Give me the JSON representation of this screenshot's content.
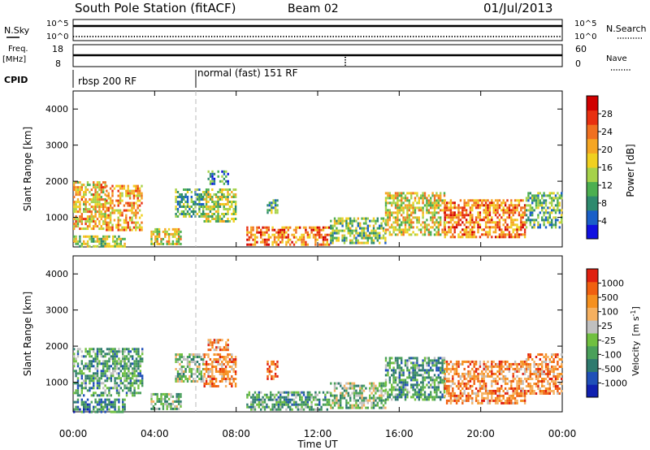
{
  "header": {
    "station": "South Pole Station (fitACF)",
    "beam": "Beam 02",
    "date": "01/Jul/2013"
  },
  "strip": {
    "nsky_label": "N.Sky",
    "nsky_ticks": [
      "10^5",
      "10^0"
    ],
    "nsearch_label": "N.Search",
    "nsearch_ticks": [
      "10^5",
      "10^0"
    ],
    "freq_label": "Freq.",
    "freq_unit": "[MHz]",
    "freq_ticks": [
      "18",
      "8"
    ],
    "nave_label": "Nave",
    "nave_ticks": [
      "60",
      "0"
    ],
    "cpid_label": "CPID",
    "modes": [
      "rbsp 200 RF",
      "normal (fast) 151 RF"
    ]
  },
  "time_axis": {
    "label": "Time UT",
    "ticks": [
      "00:00",
      "04:00",
      "08:00",
      "12:00",
      "16:00",
      "20:00",
      "00:00"
    ]
  },
  "chart_data": [
    {
      "type": "heatmap",
      "panel": "power",
      "ylabel": "Slant Range [km]",
      "x_range_hours": [
        0,
        24
      ],
      "ylim": [
        180,
        4500
      ],
      "yticks": [
        1000,
        2000,
        3000,
        4000
      ],
      "colorbar": {
        "label": "Power [dB]",
        "ticks": [
          "28",
          "24",
          "20",
          "16",
          "12",
          "8",
          "4"
        ],
        "range": [
          0,
          30
        ],
        "colors": [
          "#1010e0",
          "#1a5fc8",
          "#2e8a6e",
          "#4caf50",
          "#a6d24a",
          "#f0d020",
          "#f5a623",
          "#f07020",
          "#e83010",
          "#d00000"
        ]
      },
      "regions": [
        {
          "t": [
            0.0,
            1.6
          ],
          "r": [
            700,
            2000
          ],
          "level": 18
        },
        {
          "t": [
            1.6,
            3.4
          ],
          "r": [
            650,
            1900
          ],
          "level": 20
        },
        {
          "t": [
            0.0,
            2.5
          ],
          "r": [
            200,
            500
          ],
          "level": 14
        },
        {
          "t": [
            3.8,
            5.3
          ],
          "r": [
            250,
            700
          ],
          "level": 16
        },
        {
          "t": [
            5.0,
            6.4
          ],
          "r": [
            1000,
            1800
          ],
          "level": 10
        },
        {
          "t": [
            6.4,
            8.0
          ],
          "r": [
            900,
            1800
          ],
          "level": 14
        },
        {
          "t": [
            6.6,
            7.6
          ],
          "r": [
            1900,
            2300
          ],
          "level": 8
        },
        {
          "t": [
            9.5,
            10.0
          ],
          "r": [
            1100,
            1500
          ],
          "level": 9
        },
        {
          "t": [
            8.5,
            12.6
          ],
          "r": [
            220,
            750
          ],
          "level": 22
        },
        {
          "t": [
            12.6,
            15.3
          ],
          "r": [
            300,
            1000
          ],
          "level": 12
        },
        {
          "t": [
            15.3,
            18.2
          ],
          "r": [
            500,
            1700
          ],
          "level": 16
        },
        {
          "t": [
            18.2,
            22.2
          ],
          "r": [
            450,
            1500
          ],
          "level": 22
        },
        {
          "t": [
            22.2,
            24.0
          ],
          "r": [
            700,
            1700
          ],
          "level": 10
        }
      ]
    },
    {
      "type": "heatmap",
      "panel": "velocity",
      "ylabel": "Slant Range [km]",
      "x_range_hours": [
        0,
        24
      ],
      "ylim": [
        180,
        4500
      ],
      "yticks": [
        1000,
        2000,
        3000,
        4000
      ],
      "colorbar": {
        "label": "Velocity [m s^-1]",
        "unit_label": "Velocity",
        "unit_text": "[m s",
        "unit_exp": "-1",
        "ticks": [
          "1000",
          "500",
          "100",
          "25",
          "-25",
          "-100",
          "-500",
          "-1000"
        ],
        "colors": [
          "#1020b0",
          "#2050b8",
          "#2e7a6e",
          "#4aa05a",
          "#70c040",
          "#c0c0c0",
          "#f5b060",
          "#f5901f",
          "#f06010",
          "#e02010"
        ]
      },
      "regions": [
        {
          "t": [
            0.0,
            3.4
          ],
          "r": [
            650,
            1950
          ],
          "level": 3
        },
        {
          "t": [
            0.0,
            2.5
          ],
          "r": [
            200,
            550
          ],
          "level": 2
        },
        {
          "t": [
            3.8,
            5.3
          ],
          "r": [
            250,
            700
          ],
          "level": 4
        },
        {
          "t": [
            5.0,
            6.4
          ],
          "r": [
            1000,
            1800
          ],
          "level": 4
        },
        {
          "t": [
            6.4,
            8.0
          ],
          "r": [
            900,
            1800
          ],
          "level": 7
        },
        {
          "t": [
            6.6,
            7.6
          ],
          "r": [
            1900,
            2200
          ],
          "level": 7
        },
        {
          "t": [
            9.5,
            10.0
          ],
          "r": [
            1100,
            1600
          ],
          "level": 8
        },
        {
          "t": [
            8.5,
            12.6
          ],
          "r": [
            220,
            750
          ],
          "level": 3
        },
        {
          "t": [
            12.6,
            15.3
          ],
          "r": [
            300,
            1000
          ],
          "level": 4
        },
        {
          "t": [
            15.3,
            18.2
          ],
          "r": [
            500,
            1700
          ],
          "level": 3
        },
        {
          "t": [
            18.2,
            22.2
          ],
          "r": [
            450,
            1600
          ],
          "level": 7
        },
        {
          "t": [
            22.2,
            24.0
          ],
          "r": [
            700,
            1800
          ],
          "level": 7
        }
      ]
    }
  ]
}
